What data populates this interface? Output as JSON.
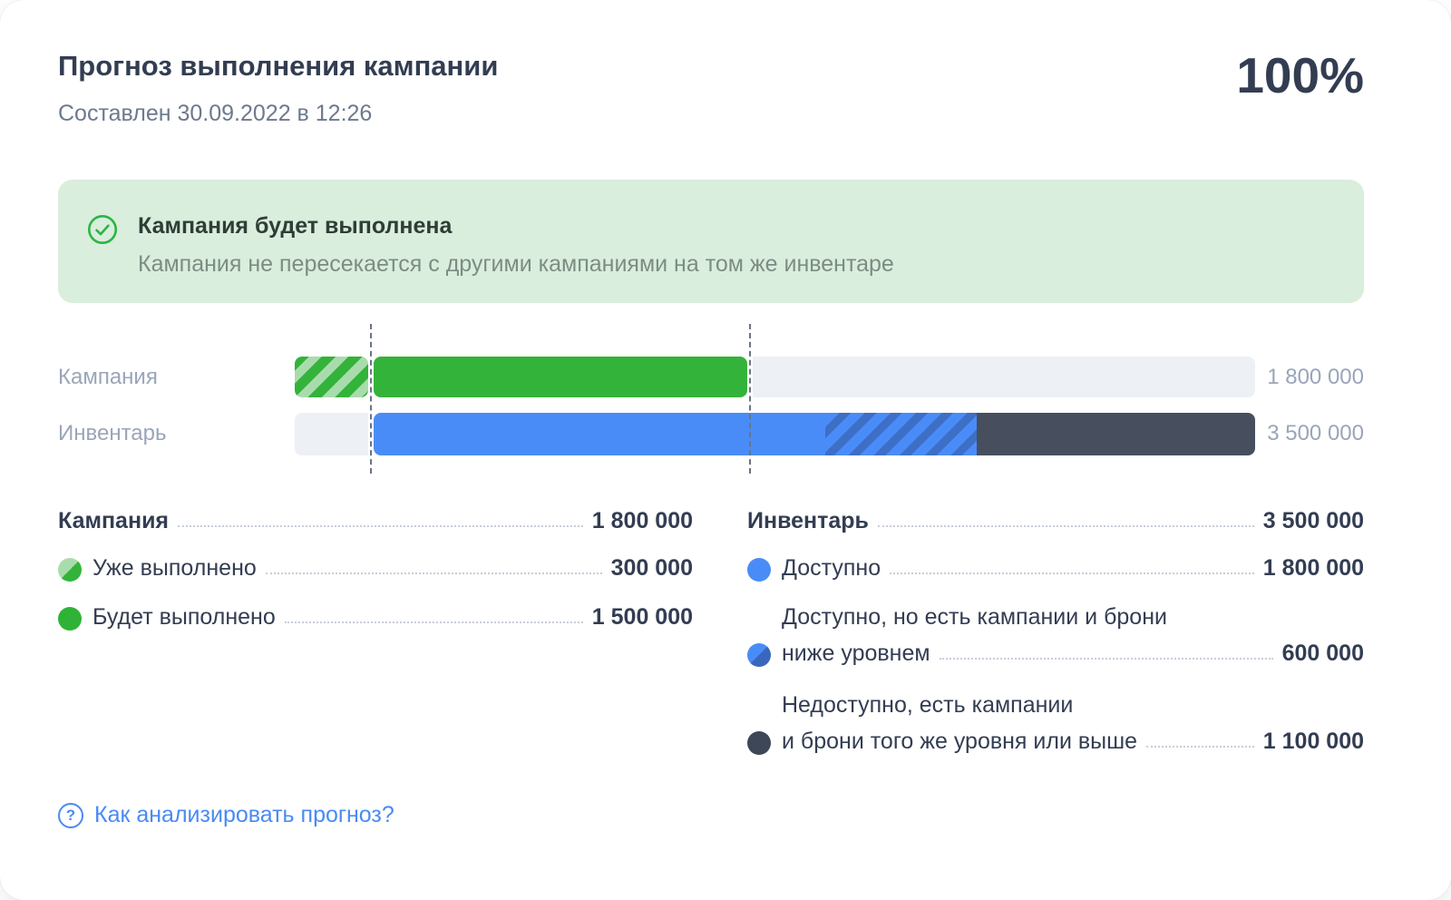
{
  "header": {
    "title": "Прогноз выполнения кампании",
    "subtitle": "Составлен 30.09.2022 в 12:26",
    "percent": "100%"
  },
  "banner": {
    "icon": "check-circle-icon",
    "title": "Кампания будет выполнена",
    "subtitle": "Кампания не пересекается с другими кампаниями на том же инвентаре",
    "bg_color": "#d9eedd",
    "accent_color": "#2cb445"
  },
  "chart_data": {
    "type": "bar",
    "orientation": "horizontal",
    "unit_total": 3800000,
    "guides_at_values": [
      300000,
      1800000
    ],
    "rows": [
      {
        "label": "Кампания",
        "total": 1800000,
        "total_label": "1 800 000",
        "segments": [
          {
            "name": "Уже выполнено",
            "value": 300000,
            "style": "striped-green"
          },
          {
            "name": "Будет выполнено",
            "value": 1500000,
            "style": "solid-green"
          },
          {
            "name": "остаток шкалы",
            "value": 2000000,
            "style": "track-gray"
          }
        ]
      },
      {
        "label": "Инвентарь",
        "total": 3500000,
        "total_label": "3 500 000",
        "segments": [
          {
            "name": "смещение шкалы",
            "value": 300000,
            "style": "track-gray"
          },
          {
            "name": "Доступно",
            "value": 1800000,
            "style": "solid-blue"
          },
          {
            "name": "Доступно, но есть кампании и брони ниже уровнем",
            "value": 600000,
            "style": "striped-blue"
          },
          {
            "name": "Недоступно, есть кампании и брони того же уровня или выше",
            "value": 1100000,
            "style": "solid-dark"
          }
        ]
      }
    ],
    "colors": {
      "green": "#34b33a",
      "light_green": "#a9dcad",
      "blue": "#4a8cf7",
      "dark_blue": "#3d6fc6",
      "dark_slate": "#474f5e",
      "track": "#edf0f5"
    }
  },
  "legend": {
    "campaign": {
      "title": "Кампания",
      "total": "1 800 000",
      "items": [
        {
          "label": "Уже выполнено",
          "value": "300 000"
        },
        {
          "label": "Будет выполнено",
          "value": "1 500 000"
        }
      ]
    },
    "inventory": {
      "title": "Инвентарь",
      "total": "3 500 000",
      "items": [
        {
          "label": "Доступно",
          "value": "1 800 000"
        },
        {
          "label_line1": "Доступно, но есть кампании и брони",
          "label_line2": "ниже уровнем",
          "value": "600 000"
        },
        {
          "label_line1": "Недоступно, есть кампании",
          "label_line2": "и брони того же уровня или выше",
          "value": "1 100 000"
        }
      ]
    }
  },
  "footer": {
    "icon": "question-circle-icon",
    "icon_glyph": "?",
    "help_link": "Как анализировать прогноз?"
  }
}
